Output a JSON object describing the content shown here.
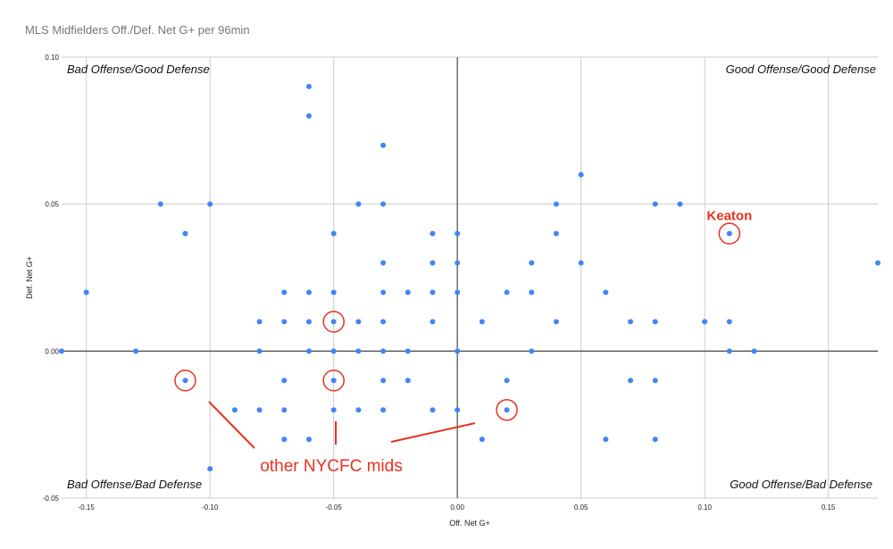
{
  "colors": {
    "point": "#4285f4",
    "annotation": "#e8321e",
    "grid": "#cccccc",
    "zero_line": "#555555"
  },
  "chart_data": {
    "type": "scatter",
    "title": "MLS Midfielders Off./Def. Net G+ per 96min",
    "xlabel": "Off. Net G+",
    "ylabel": "Def. Net G+",
    "xlim": [
      -0.16,
      0.17
    ],
    "ylim": [
      -0.05,
      0.1
    ],
    "x_ticks": [
      "-0.15",
      "-0.10",
      "-0.05",
      "0.00",
      "0.05",
      "0.10",
      "0.15"
    ],
    "y_ticks": [
      "-0.05",
      "0.00",
      "0.05",
      "0.10"
    ],
    "grid": true,
    "quadrant_labels": {
      "top_left": "Bad Offense/Good Defense",
      "top_right": "Good Offense/Good Defense",
      "bottom_left": "Bad Offense/Bad Defense",
      "bottom_right": "Good Offense/Bad Defense"
    },
    "points": [
      [
        -0.06,
        0.09
      ],
      [
        -0.06,
        0.08
      ],
      [
        -0.03,
        0.07
      ],
      [
        0.05,
        0.06
      ],
      [
        -0.12,
        0.05
      ],
      [
        -0.1,
        0.05
      ],
      [
        -0.04,
        0.05
      ],
      [
        -0.03,
        0.05
      ],
      [
        0.04,
        0.05
      ],
      [
        0.08,
        0.05
      ],
      [
        0.09,
        0.05
      ],
      [
        -0.11,
        0.04
      ],
      [
        -0.05,
        0.04
      ],
      [
        -0.01,
        0.04
      ],
      [
        0.0,
        0.04
      ],
      [
        0.04,
        0.04
      ],
      [
        0.11,
        0.04
      ],
      [
        -0.03,
        0.03
      ],
      [
        -0.01,
        0.03
      ],
      [
        0.0,
        0.03
      ],
      [
        0.03,
        0.03
      ],
      [
        0.05,
        0.03
      ],
      [
        0.17,
        0.03
      ],
      [
        -0.15,
        0.02
      ],
      [
        -0.07,
        0.02
      ],
      [
        -0.06,
        0.02
      ],
      [
        -0.05,
        0.02
      ],
      [
        -0.03,
        0.02
      ],
      [
        -0.02,
        0.02
      ],
      [
        -0.01,
        0.02
      ],
      [
        0.0,
        0.02
      ],
      [
        0.02,
        0.02
      ],
      [
        0.03,
        0.02
      ],
      [
        0.06,
        0.02
      ],
      [
        -0.08,
        0.01
      ],
      [
        -0.07,
        0.01
      ],
      [
        -0.06,
        0.01
      ],
      [
        -0.05,
        0.01
      ],
      [
        -0.04,
        0.01
      ],
      [
        -0.03,
        0.01
      ],
      [
        -0.01,
        0.01
      ],
      [
        0.01,
        0.01
      ],
      [
        0.04,
        0.01
      ],
      [
        0.07,
        0.01
      ],
      [
        0.08,
        0.01
      ],
      [
        0.1,
        0.01
      ],
      [
        0.11,
        0.01
      ],
      [
        -0.16,
        0.0
      ],
      [
        -0.13,
        0.0
      ],
      [
        -0.08,
        0.0
      ],
      [
        -0.06,
        0.0
      ],
      [
        -0.05,
        0.0
      ],
      [
        -0.04,
        0.0
      ],
      [
        -0.03,
        0.0
      ],
      [
        -0.02,
        0.0
      ],
      [
        0.0,
        0.0
      ],
      [
        0.03,
        0.0
      ],
      [
        0.11,
        0.0
      ],
      [
        0.12,
        0.0
      ],
      [
        -0.11,
        -0.01
      ],
      [
        -0.07,
        -0.01
      ],
      [
        -0.05,
        -0.01
      ],
      [
        -0.03,
        -0.01
      ],
      [
        -0.02,
        -0.01
      ],
      [
        0.02,
        -0.01
      ],
      [
        0.07,
        -0.01
      ],
      [
        0.08,
        -0.01
      ],
      [
        -0.09,
        -0.02
      ],
      [
        -0.08,
        -0.02
      ],
      [
        -0.07,
        -0.02
      ],
      [
        -0.05,
        -0.02
      ],
      [
        -0.04,
        -0.02
      ],
      [
        -0.03,
        -0.02
      ],
      [
        -0.01,
        -0.02
      ],
      [
        0.0,
        -0.02
      ],
      [
        0.02,
        -0.02
      ],
      [
        -0.07,
        -0.03
      ],
      [
        -0.06,
        -0.03
      ],
      [
        0.01,
        -0.03
      ],
      [
        0.06,
        -0.03
      ],
      [
        0.08,
        -0.03
      ],
      [
        -0.1,
        -0.04
      ]
    ],
    "annotations": {
      "keaton_label": "Keaton",
      "keaton_point": [
        0.11,
        0.04
      ],
      "nycfc_label": "other NYCFC mids",
      "nycfc_points": [
        [
          -0.11,
          -0.01
        ],
        [
          -0.05,
          0.01
        ],
        [
          -0.05,
          -0.01
        ],
        [
          0.02,
          -0.02
        ]
      ]
    }
  }
}
